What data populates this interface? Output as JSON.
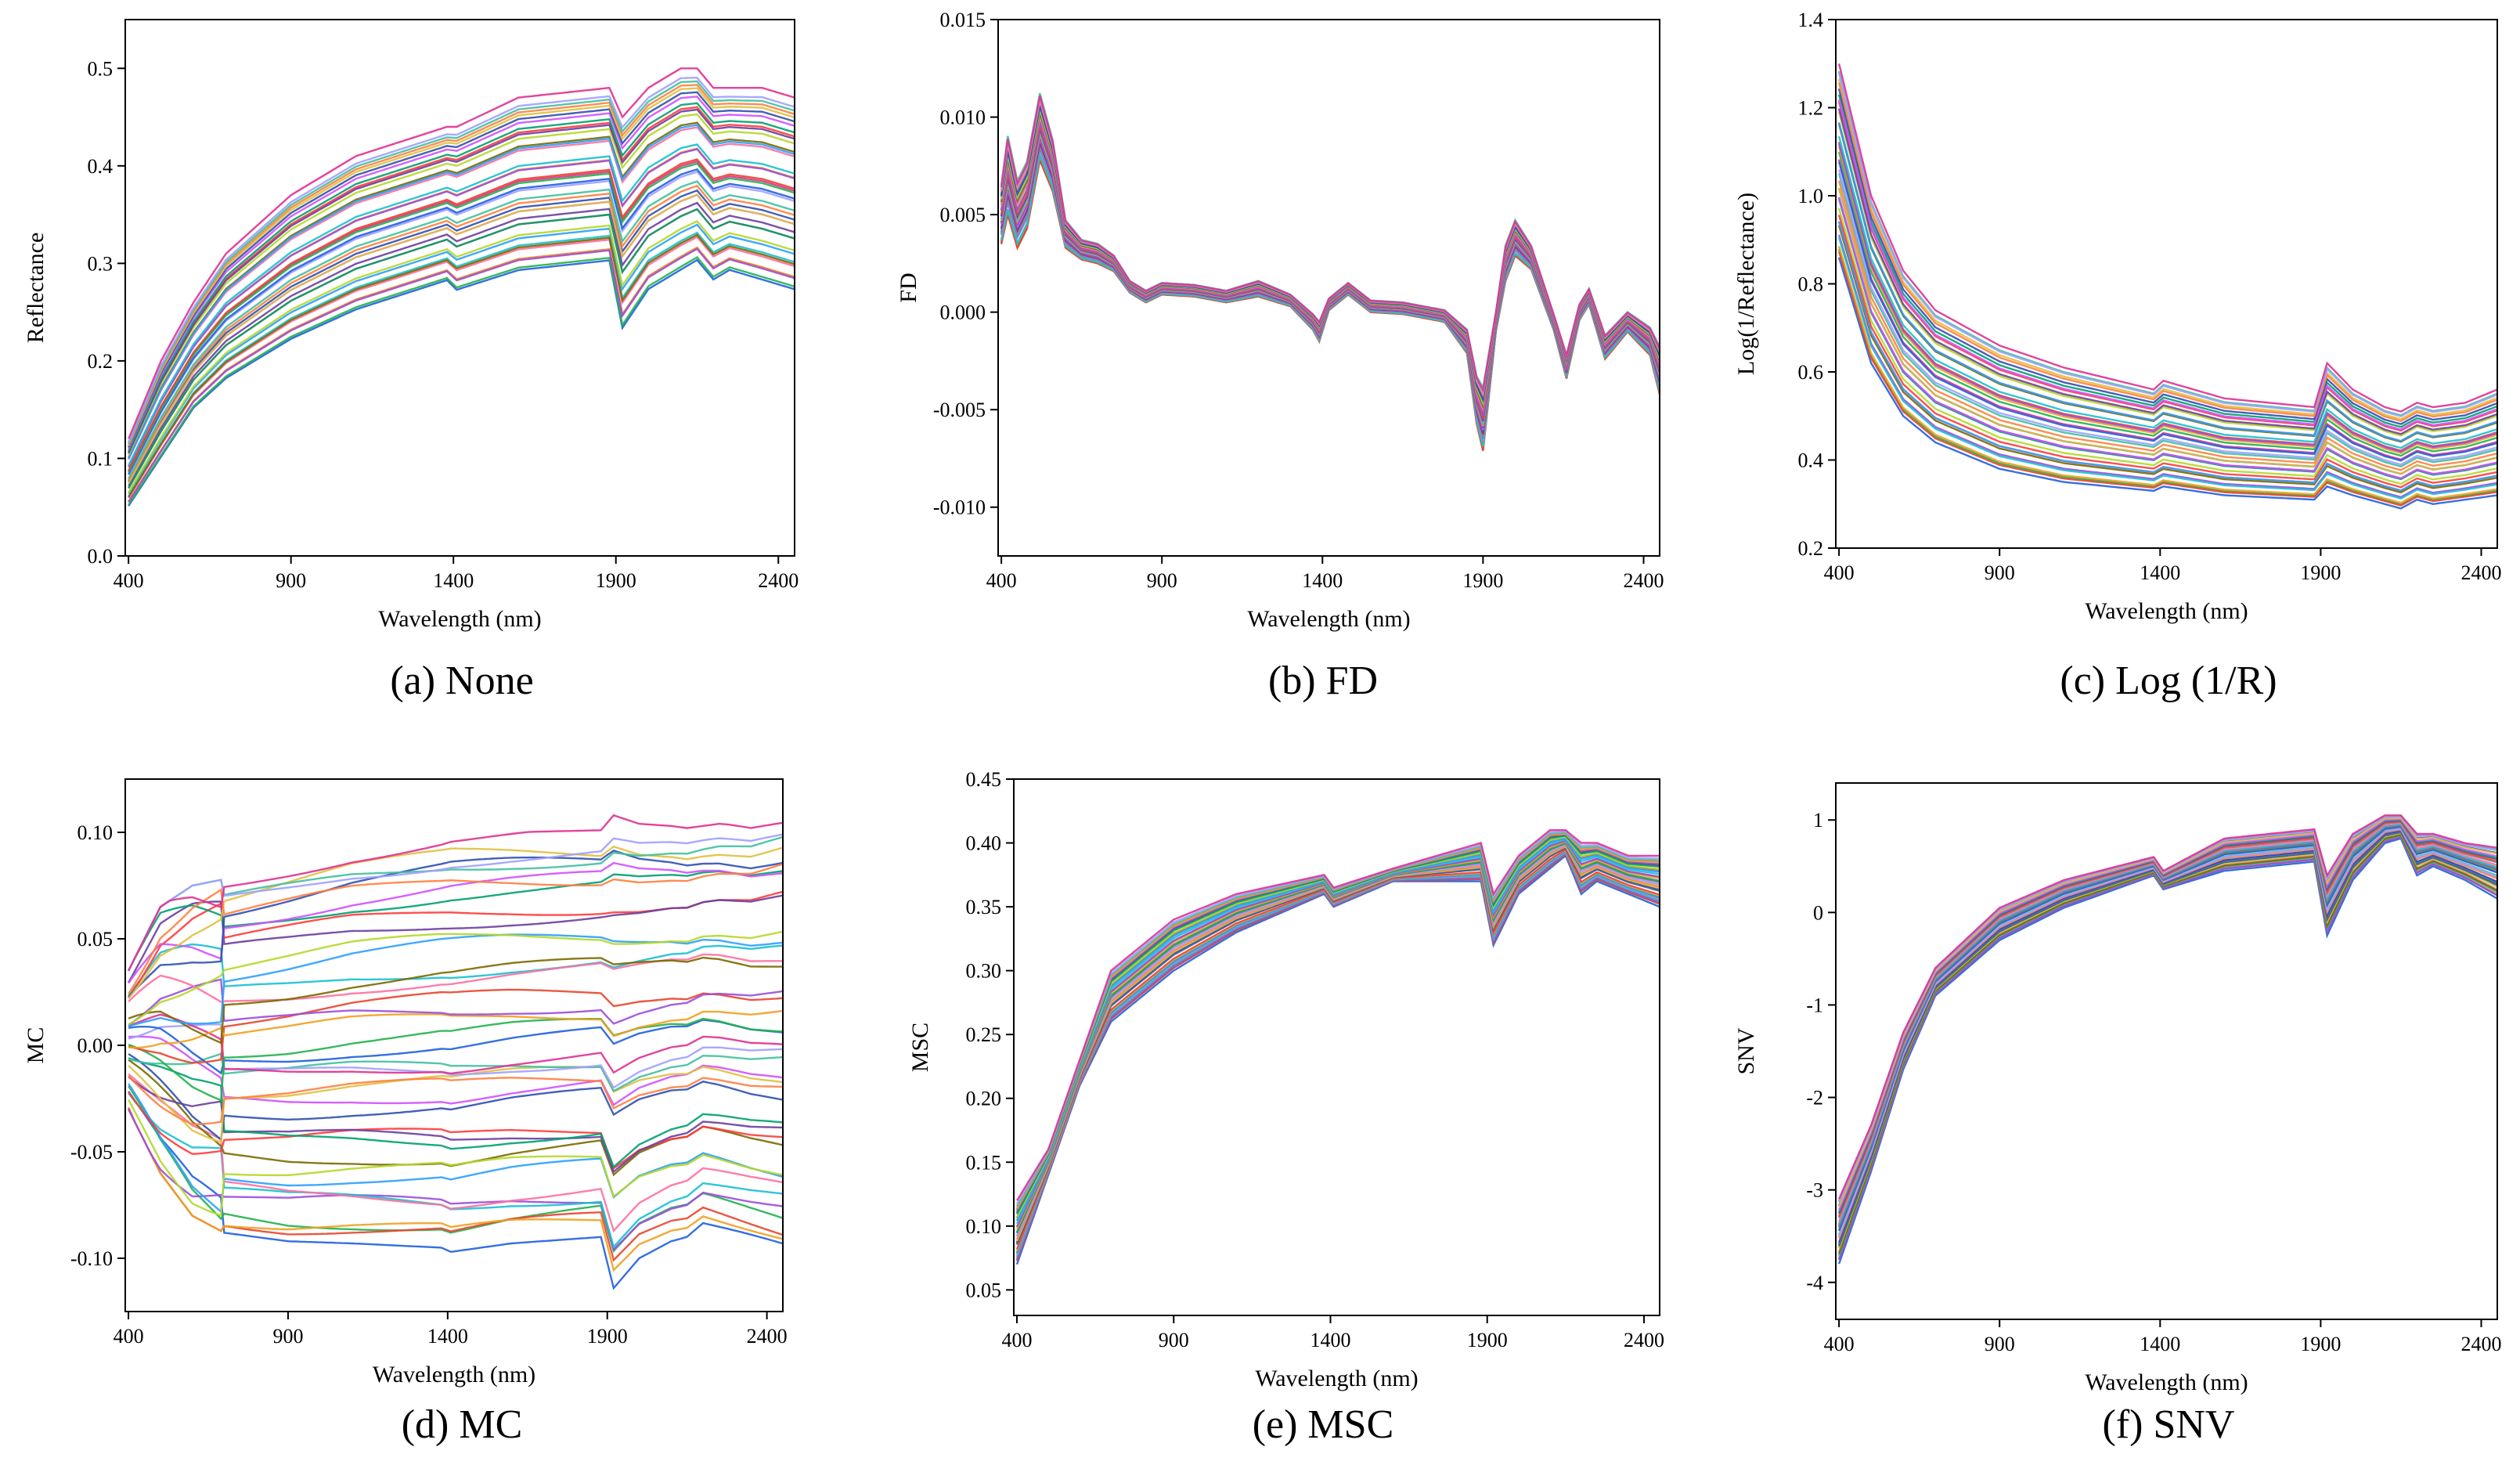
{
  "figure": {
    "colors": [
      "#1f5fe0",
      "#22b14c",
      "#e8452c",
      "#f0a020",
      "#9b4ddb",
      "#17c0d0",
      "#ff6fa0",
      "#7a6a00",
      "#2aa0ff",
      "#b4d828",
      "#ff3b3b",
      "#6b3fa0",
      "#00a070",
      "#d050ff",
      "#3050b0",
      "#e0c040",
      "#ff8040",
      "#40c0a0",
      "#a0a0ff",
      "#e03090"
    ]
  },
  "chart_data": [
    {
      "id": "none",
      "type": "line",
      "caption": "(a) None",
      "title": "",
      "xlabel": "Wavelength (nm)",
      "ylabel": "Reflectance",
      "xlim": [
        390,
        2450
      ],
      "ylim": [
        0.0,
        0.55
      ],
      "xticks": [
        400,
        900,
        1400,
        1900,
        2400
      ],
      "xtick_labels": [
        "400",
        "900",
        "1400",
        "1900",
        "2400"
      ],
      "yticks": [
        0.0,
        0.1,
        0.2,
        0.3,
        0.4,
        0.5
      ],
      "ytick_labels": [
        "0.0",
        "0.1",
        "0.2",
        "0.3",
        "0.4",
        "0.5"
      ],
      "n_series": 40,
      "x": [
        400,
        500,
        600,
        700,
        900,
        1100,
        1380,
        1410,
        1600,
        1880,
        1920,
        2000,
        2100,
        2150,
        2200,
        2250,
        2350,
        2450
      ],
      "series_min": [
        0.05,
        0.1,
        0.15,
        0.18,
        0.22,
        0.25,
        0.28,
        0.27,
        0.29,
        0.3,
        0.23,
        0.27,
        0.29,
        0.3,
        0.28,
        0.29,
        0.28,
        0.27
      ],
      "series_max": [
        0.12,
        0.2,
        0.26,
        0.31,
        0.37,
        0.41,
        0.44,
        0.44,
        0.47,
        0.48,
        0.45,
        0.48,
        0.5,
        0.5,
        0.48,
        0.48,
        0.48,
        0.47
      ],
      "feature_type": "spectra"
    },
    {
      "id": "fd",
      "type": "line",
      "caption": "(b) FD",
      "title": "",
      "xlabel": "Wavelength (nm)",
      "ylabel": "FD",
      "xlim": [
        390,
        2450
      ],
      "ylim": [
        -0.0125,
        0.015
      ],
      "xticks": [
        400,
        900,
        1400,
        1900,
        2400
      ],
      "xtick_labels": [
        "400",
        "900",
        "1400",
        "1900",
        "2400"
      ],
      "yticks": [
        -0.01,
        -0.005,
        0.0,
        0.005,
        0.01,
        0.015
      ],
      "ytick_labels": [
        "-0.010",
        "-0.005",
        "0.000",
        "0.005",
        "0.010",
        "0.015"
      ],
      "n_series": 40,
      "x": [
        400,
        420,
        450,
        480,
        520,
        560,
        600,
        650,
        700,
        750,
        800,
        850,
        900,
        1000,
        1100,
        1200,
        1300,
        1370,
        1390,
        1420,
        1480,
        1550,
        1650,
        1780,
        1850,
        1880,
        1900,
        1940,
        1970,
        2000,
        2050,
        2120,
        2160,
        2200,
        2230,
        2280,
        2350,
        2420,
        2450
      ],
      "center": [
        0.005,
        0.007,
        0.005,
        0.006,
        0.0095,
        0.0075,
        0.004,
        0.0032,
        0.003,
        0.0025,
        0.0013,
        0.0008,
        0.0012,
        0.0011,
        0.0008,
        0.0012,
        0.0006,
        -0.0005,
        -0.001,
        0.0004,
        0.0012,
        0.0003,
        0.0002,
        -0.0002,
        -0.0015,
        -0.0045,
        -0.0055,
        -0.0005,
        0.0025,
        0.0038,
        0.0028,
        -0.0005,
        -0.0028,
        0.0,
        0.0008,
        -0.0018,
        -0.0005,
        -0.0015,
        -0.003
      ],
      "spread": [
        0.0015,
        0.002,
        0.0017,
        0.0017,
        0.0017,
        0.0013,
        0.0007,
        0.0005,
        0.0005,
        0.0004,
        0.0003,
        0.0003,
        0.0003,
        0.0003,
        0.0003,
        0.0004,
        0.0003,
        0.0004,
        0.0005,
        0.0003,
        0.0003,
        0.0003,
        0.0003,
        0.0003,
        0.0006,
        0.0012,
        0.0016,
        0.0005,
        0.0009,
        0.0009,
        0.0006,
        0.0004,
        0.0006,
        0.0004,
        0.0004,
        0.0006,
        0.0005,
        0.0007,
        0.0012
      ],
      "feature_type": "derivative"
    },
    {
      "id": "log",
      "type": "line",
      "caption": "(c) Log (1/R)",
      "title": "",
      "xlabel": "Wavelength (nm)",
      "ylabel": "Log(1/Reflectance)",
      "xlim": [
        390,
        2450
      ],
      "ylim": [
        0.2,
        1.4
      ],
      "xticks": [
        400,
        900,
        1400,
        1900,
        2400
      ],
      "xtick_labels": [
        "400",
        "900",
        "1400",
        "1900",
        "2400"
      ],
      "yticks": [
        0.2,
        0.4,
        0.6,
        0.8,
        1.0,
        1.2,
        1.4
      ],
      "ytick_labels": [
        "0.2",
        "0.4",
        "0.6",
        "0.8",
        "1.0",
        "1.2",
        "1.4"
      ],
      "n_series": 40,
      "x": [
        400,
        500,
        600,
        700,
        900,
        1100,
        1380,
        1410,
        1600,
        1880,
        1920,
        2000,
        2100,
        2150,
        2200,
        2250,
        2350,
        2450
      ],
      "series_min": [
        0.86,
        0.62,
        0.5,
        0.44,
        0.38,
        0.35,
        0.33,
        0.34,
        0.32,
        0.31,
        0.34,
        0.32,
        0.3,
        0.29,
        0.31,
        0.3,
        0.31,
        0.32
      ],
      "series_max": [
        1.3,
        1.0,
        0.83,
        0.74,
        0.66,
        0.61,
        0.56,
        0.58,
        0.54,
        0.52,
        0.62,
        0.56,
        0.52,
        0.51,
        0.53,
        0.52,
        0.53,
        0.56
      ],
      "feature_type": "spectra"
    },
    {
      "id": "mc",
      "type": "line",
      "caption": "(d) MC",
      "title": "",
      "xlabel": "Wavelength (nm)",
      "ylabel": "MC",
      "xlim": [
        390,
        2450
      ],
      "ylim": [
        -0.125,
        0.125
      ],
      "xticks": [
        400,
        900,
        1400,
        1900,
        2400
      ],
      "xtick_labels": [
        "400",
        "900",
        "1400",
        "1900",
        "2400"
      ],
      "yticks": [
        -0.1,
        -0.05,
        0.0,
        0.05,
        0.1
      ],
      "ytick_labels": [
        "-0.10",
        "-0.05",
        "0.00",
        "0.05",
        "0.10"
      ],
      "n_series": 40,
      "x": [
        400,
        500,
        600,
        700,
        900,
        1100,
        1380,
        1410,
        1600,
        1880,
        1920,
        2000,
        2100,
        2150,
        2200,
        2250,
        2350,
        2450
      ],
      "series_min": [
        -0.03,
        -0.06,
        -0.08,
        -0.088,
        -0.092,
        -0.093,
        -0.095,
        -0.097,
        -0.093,
        -0.09,
        -0.114,
        -0.1,
        -0.092,
        -0.09,
        -0.084,
        -0.086,
        -0.09,
        -0.094
      ],
      "series_max": [
        0.035,
        0.065,
        0.075,
        0.078,
        0.085,
        0.092,
        0.098,
        0.099,
        0.1,
        0.101,
        0.108,
        0.104,
        0.103,
        0.102,
        0.103,
        0.104,
        0.103,
        0.107
      ],
      "feature_type": "centered"
    },
    {
      "id": "msc",
      "type": "line",
      "caption": "(e) MSC",
      "title": "",
      "xlabel": "Wavelength (nm)",
      "ylabel": "MSC",
      "xlim": [
        390,
        2450
      ],
      "ylim": [
        0.03,
        0.45
      ],
      "xticks": [
        400,
        900,
        1400,
        1900,
        2400
      ],
      "xtick_labels": [
        "400",
        "900",
        "1400",
        "1900",
        "2400"
      ],
      "yticks": [
        0.05,
        0.1,
        0.15,
        0.2,
        0.25,
        0.3,
        0.35,
        0.4,
        0.45
      ],
      "ytick_labels": [
        "0.05",
        "0.10",
        "0.15",
        "0.20",
        "0.25",
        "0.30",
        "0.35",
        "0.40",
        "0.45"
      ],
      "n_series": 40,
      "x": [
        400,
        500,
        600,
        700,
        900,
        1100,
        1380,
        1410,
        1600,
        1880,
        1920,
        2000,
        2100,
        2150,
        2200,
        2250,
        2350,
        2450
      ],
      "series_min": [
        0.07,
        0.14,
        0.21,
        0.26,
        0.3,
        0.33,
        0.36,
        0.35,
        0.37,
        0.37,
        0.32,
        0.36,
        0.38,
        0.39,
        0.36,
        0.37,
        0.36,
        0.35
      ],
      "series_max": [
        0.12,
        0.16,
        0.23,
        0.3,
        0.34,
        0.36,
        0.375,
        0.365,
        0.38,
        0.4,
        0.36,
        0.39,
        0.41,
        0.41,
        0.4,
        0.4,
        0.39,
        0.39
      ],
      "feature_type": "spectra"
    },
    {
      "id": "snv",
      "type": "line",
      "caption": "(f) SNV",
      "title": "",
      "xlabel": "Wavelength (nm)",
      "ylabel": "SNV",
      "xlim": [
        390,
        2450
      ],
      "ylim": [
        -4.4,
        1.4
      ],
      "xticks": [
        400,
        900,
        1400,
        1900,
        2400
      ],
      "xtick_labels": [
        "400",
        "900",
        "1400",
        "1900",
        "2400"
      ],
      "yticks": [
        -4,
        -3,
        -2,
        -1,
        0,
        1
      ],
      "ytick_labels": [
        "-4",
        "-3",
        "-2",
        "-1",
        "0",
        "1"
      ],
      "n_series": 40,
      "x": [
        400,
        500,
        600,
        700,
        900,
        1100,
        1380,
        1410,
        1600,
        1880,
        1920,
        2000,
        2100,
        2150,
        2200,
        2250,
        2350,
        2450
      ],
      "series_min": [
        -3.8,
        -2.8,
        -1.7,
        -0.9,
        -0.3,
        0.05,
        0.4,
        0.25,
        0.45,
        0.55,
        -0.25,
        0.35,
        0.75,
        0.8,
        0.4,
        0.5,
        0.35,
        0.15
      ],
      "series_max": [
        -3.1,
        -2.3,
        -1.3,
        -0.6,
        0.05,
        0.35,
        0.6,
        0.45,
        0.8,
        0.9,
        0.4,
        0.85,
        1.05,
        1.05,
        0.85,
        0.85,
        0.75,
        0.7
      ],
      "feature_type": "spectra"
    }
  ]
}
